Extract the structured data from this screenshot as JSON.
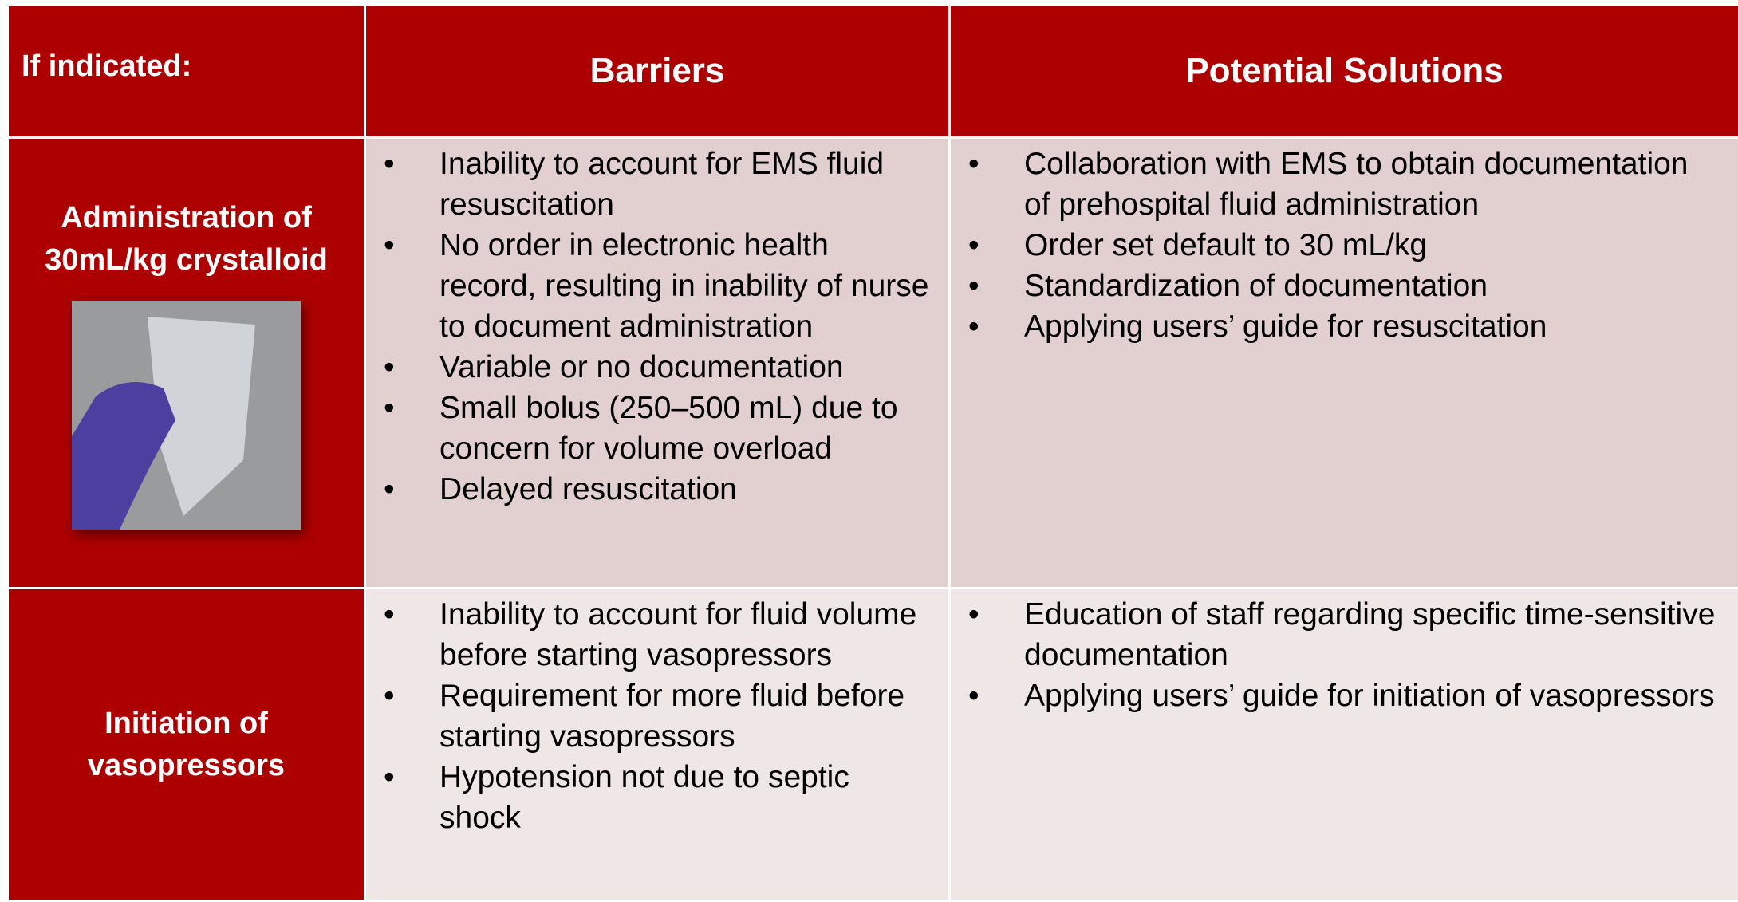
{
  "table": {
    "header": [
      "If indicated:",
      "Barriers",
      "Potential Solutions"
    ],
    "rows": [
      {
        "label": "Administration of 30mL/kg crystalloid",
        "barriers": [
          "Inability to account for EMS fluid resuscitation",
          "No order in electronic health record, resulting in inability of nurse to document administration",
          "Variable or no documentation",
          "Small bolus (250–500 mL) due to concern for volume overload",
          "Delayed resuscitation"
        ],
        "solutions": [
          "Collaboration with EMS to obtain documentation of prehospital fluid administration",
          "Order set default to 30 mL/kg",
          "Standardization of documentation",
          "Applying users’ guide for resuscitation"
        ]
      },
      {
        "label": "Initiation of vasopressors",
        "barriers": [
          "Inability to account for fluid volume before starting vasopressors",
          "Requirement for more fluid before starting vasopressors",
          "Hypotension not due to septic shock"
        ],
        "solutions": [
          "Education of staff regarding specific time-sensitive documentation",
          "Applying users’ guide for initiation of vasopressors"
        ]
      }
    ]
  }
}
